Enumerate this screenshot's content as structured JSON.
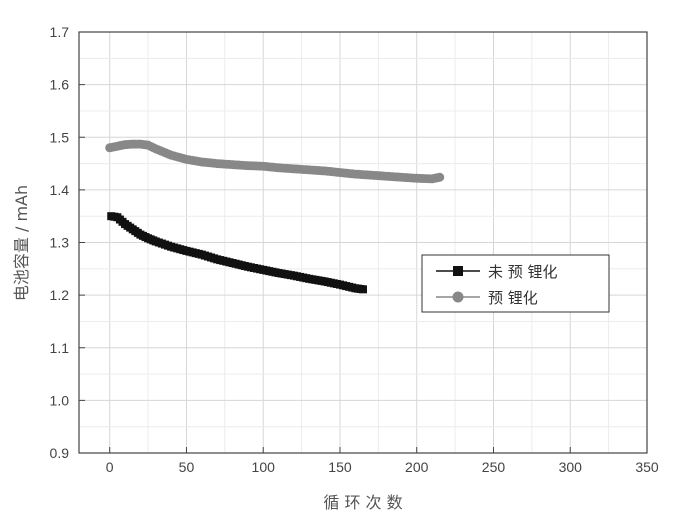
{
  "chart_data": {
    "type": "scatter",
    "xlabel": "循 环 次 数",
    "ylabel": "电池容量 / mAh",
    "xlim": [
      -20,
      350
    ],
    "ylim": [
      0.9,
      1.7
    ],
    "xticks": [
      0,
      50,
      100,
      150,
      200,
      250,
      300,
      350
    ],
    "xtick_labels": [
      "0",
      "50",
      "100",
      "150",
      "200",
      "250",
      "300",
      "350"
    ],
    "yticks": [
      0.9,
      1.0,
      1.1,
      1.2,
      1.3,
      1.4,
      1.5,
      1.6,
      1.7
    ],
    "ytick_labels": [
      "0.9",
      "1.0",
      "1.1",
      "1.2",
      "1.3",
      "1.4",
      "1.5",
      "1.6",
      "1.7"
    ],
    "grid": true,
    "legend_position": "right",
    "series": [
      {
        "name": "未 预 锂化",
        "marker": "square",
        "color": "#111111",
        "x": [
          1,
          5,
          10,
          15,
          20,
          25,
          30,
          40,
          50,
          60,
          70,
          80,
          90,
          100,
          110,
          120,
          130,
          140,
          150,
          160,
          165
        ],
        "y": [
          1.35,
          1.348,
          1.335,
          1.325,
          1.315,
          1.308,
          1.302,
          1.292,
          1.284,
          1.277,
          1.268,
          1.261,
          1.254,
          1.248,
          1.242,
          1.237,
          1.231,
          1.226,
          1.22,
          1.213,
          1.211
        ]
      },
      {
        "name": "预 锂化",
        "marker": "circle",
        "color": "#888888",
        "x": [
          0,
          5,
          10,
          15,
          20,
          25,
          30,
          35,
          40,
          50,
          60,
          70,
          80,
          90,
          100,
          110,
          120,
          130,
          140,
          150,
          160,
          170,
          180,
          190,
          200,
          210,
          215
        ],
        "y": [
          1.48,
          1.483,
          1.486,
          1.487,
          1.487,
          1.485,
          1.478,
          1.472,
          1.466,
          1.458,
          1.453,
          1.45,
          1.448,
          1.446,
          1.445,
          1.442,
          1.44,
          1.438,
          1.436,
          1.433,
          1.43,
          1.428,
          1.426,
          1.424,
          1.422,
          1.421,
          1.424
        ]
      }
    ]
  }
}
